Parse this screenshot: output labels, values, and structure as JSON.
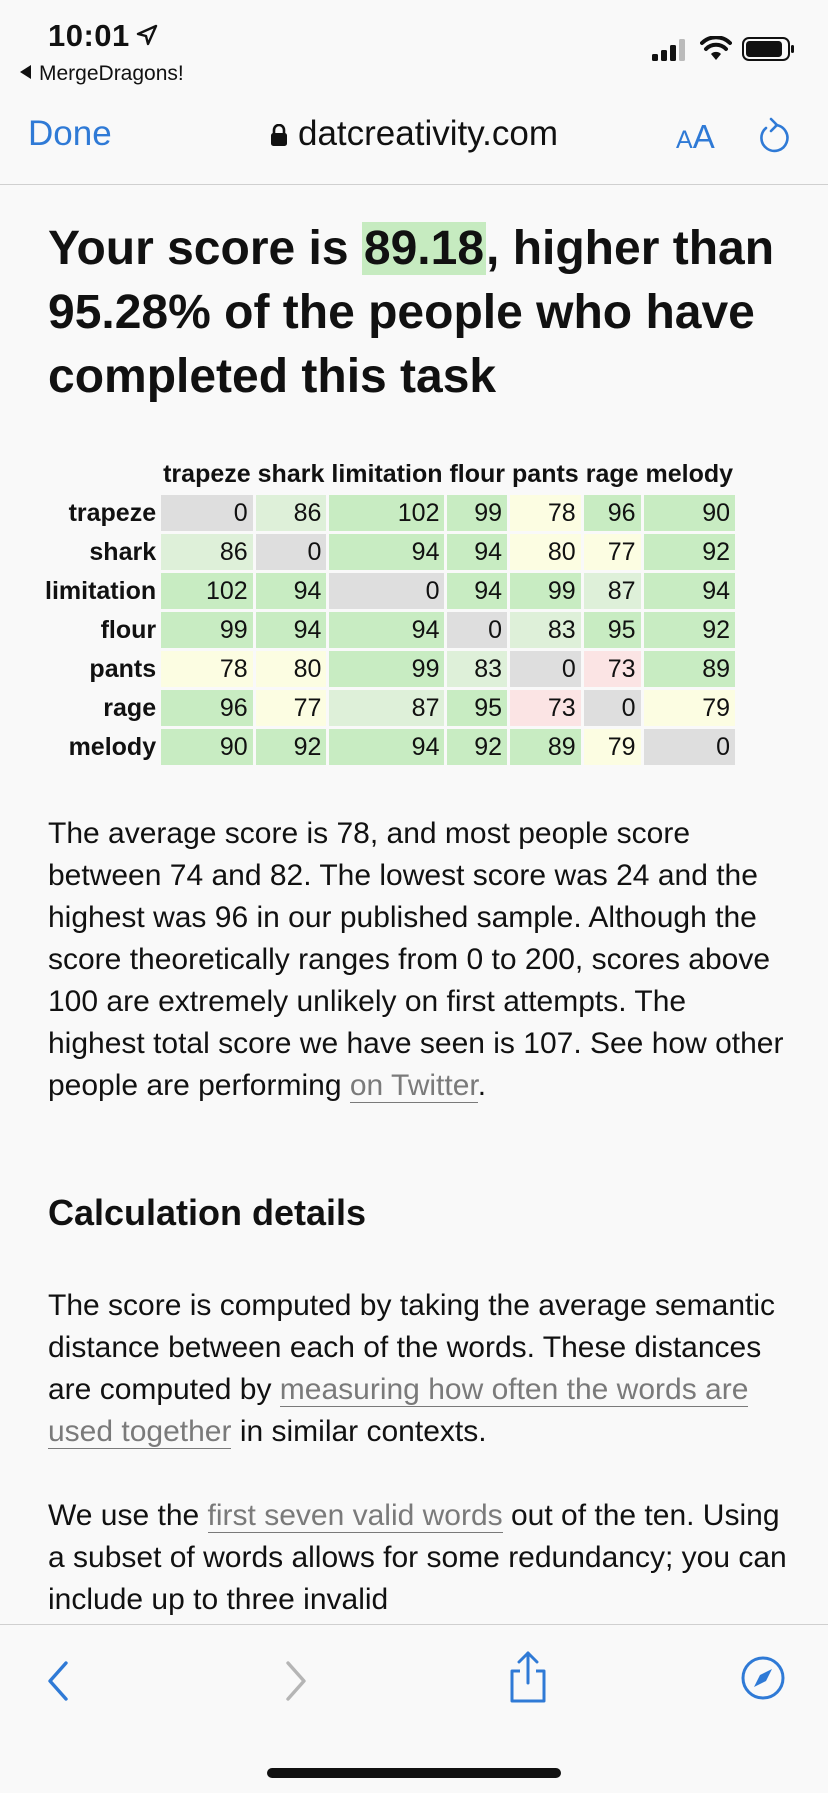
{
  "status_bar": {
    "time": "10:01",
    "back_app": "MergeDragons!"
  },
  "toolbar": {
    "done_label": "Done",
    "domain": "datcreativity.com",
    "text_size_label_small": "A",
    "text_size_label_large": "A"
  },
  "headline": {
    "prefix": "Your score is ",
    "score": "89.18",
    "suffix": ", higher than 95.28% of the people who have completed this task"
  },
  "table": {
    "headers": [
      "trapeze",
      "shark",
      "limitation",
      "flour",
      "pants",
      "rage",
      "melody"
    ],
    "rows": [
      {
        "label": "trapeze",
        "values": [
          "0",
          "86",
          "102",
          "99",
          "78",
          "96",
          "90"
        ]
      },
      {
        "label": "shark",
        "values": [
          "86",
          "0",
          "94",
          "94",
          "80",
          "77",
          "92"
        ]
      },
      {
        "label": "limitation",
        "values": [
          "102",
          "94",
          "0",
          "94",
          "99",
          "87",
          "94"
        ]
      },
      {
        "label": "flour",
        "values": [
          "99",
          "94",
          "94",
          "0",
          "83",
          "95",
          "92"
        ]
      },
      {
        "label": "pants",
        "values": [
          "78",
          "80",
          "99",
          "83",
          "0",
          "73",
          "89"
        ]
      },
      {
        "label": "rage",
        "values": [
          "96",
          "77",
          "87",
          "95",
          "73",
          "0",
          "79"
        ]
      },
      {
        "label": "melody",
        "values": [
          "90",
          "92",
          "94",
          "92",
          "89",
          "79",
          "0"
        ]
      }
    ],
    "colors": {
      "zero": "#dedede",
      "high": "#c8ecc2",
      "mid": "#def0d9",
      "low": "#fcfde2",
      "lowest": "#fbe4e4"
    }
  },
  "summary": {
    "text": "The average score is 78, and most people score between 74 and 82. The lowest score was 24 and the highest was 96 in our published sample. Although the score theoretically ranges from 0 to 200, scores above 100 are extremely unlikely on first attempts. The highest total score we have seen is 107. See how other people are performing ",
    "link": "on Twitter",
    "end": "."
  },
  "calc": {
    "heading": "Calculation details",
    "p1_a": "The score is computed by taking the average semantic distance between each of the words. These distances are computed by ",
    "p1_link": "measuring how often the words are used together",
    "p1_b": " in similar contexts.",
    "p2_a": "We use the ",
    "p2_link": "first seven valid words",
    "p2_b": " out of the ten. Using a subset of words allows for some redundancy; you can include up to three invalid"
  }
}
